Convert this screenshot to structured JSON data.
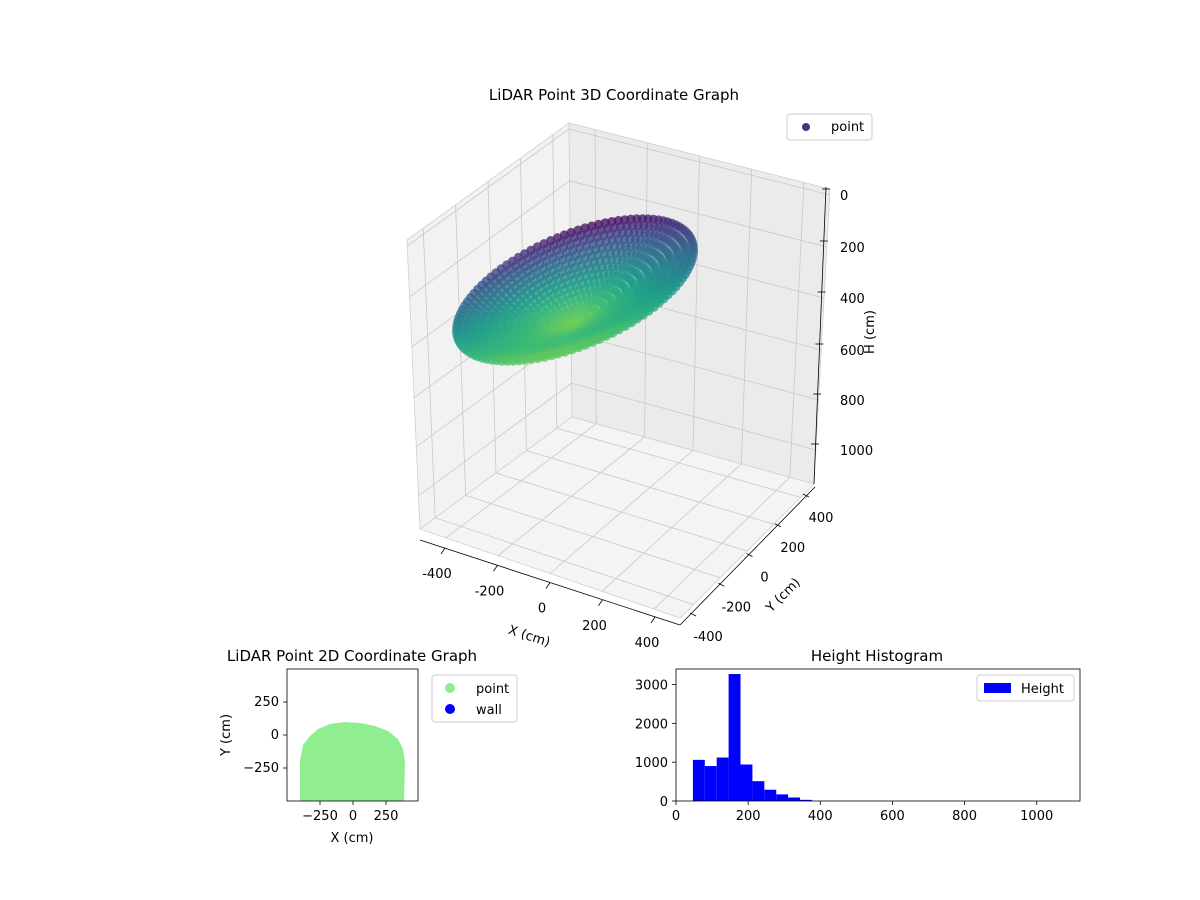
{
  "chart_data": [
    {
      "type": "scatter",
      "projection": "3d",
      "title": "LiDAR Point 3D Coordinate Graph",
      "xlabel": "X (cm)",
      "ylabel": "Y (cm)",
      "zlabel": "H (cm)",
      "xlim": [
        -450,
        450
      ],
      "ylim": [
        -450,
        450
      ],
      "zlim": [
        1100,
        0
      ],
      "x_ticks": [
        "-400",
        "-200",
        "0",
        "200",
        "400"
      ],
      "y_ticks": [
        "-400",
        "-200",
        "0",
        "200",
        "400"
      ],
      "z_ticks": [
        "0",
        "200",
        "400",
        "600",
        "800",
        "1000"
      ],
      "colormap": "viridis",
      "legend": {
        "placement": "top-right",
        "entries": [
          {
            "label": "point",
            "color": "#46327e"
          }
        ]
      },
      "grid": true
    },
    {
      "type": "scatter",
      "title": "LiDAR Point 2D Coordinate Graph",
      "xlabel": "X (cm)",
      "ylabel": "Y (cm)",
      "xlim": [
        -500,
        500
      ],
      "ylim": [
        -500,
        500
      ],
      "x_ticks": [
        "−250",
        "0",
        "250"
      ],
      "y_ticks": [
        "250",
        "0",
        "−250"
      ],
      "series": [
        {
          "name": "point",
          "color": "#90ee90"
        },
        {
          "name": "wall",
          "color": "#0000ff"
        }
      ],
      "legend": {
        "placement": "outside-right",
        "entries": [
          {
            "label": "point",
            "color": "#90ee90"
          },
          {
            "label": "wall",
            "color": "#0000ff"
          }
        ]
      }
    },
    {
      "type": "bar",
      "subtype": "histogram",
      "title": "Height Histogram",
      "xlim": [
        0,
        1120
      ],
      "ylim": [
        0,
        3400
      ],
      "x_ticks": [
        "0",
        "200",
        "400",
        "600",
        "800",
        "1000"
      ],
      "y_ticks": [
        "0",
        "1000",
        "2000",
        "3000"
      ],
      "bin_width": 33,
      "bin_start": 0,
      "values": [
        0,
        1060,
        900,
        1120,
        3270,
        940,
        510,
        290,
        170,
        90,
        30,
        0
      ],
      "series": [
        {
          "name": "Height",
          "color": "#0000ff"
        }
      ],
      "legend": {
        "placement": "top-right",
        "entries": [
          {
            "label": "Height",
            "color": "#0000ff"
          }
        ]
      }
    }
  ]
}
